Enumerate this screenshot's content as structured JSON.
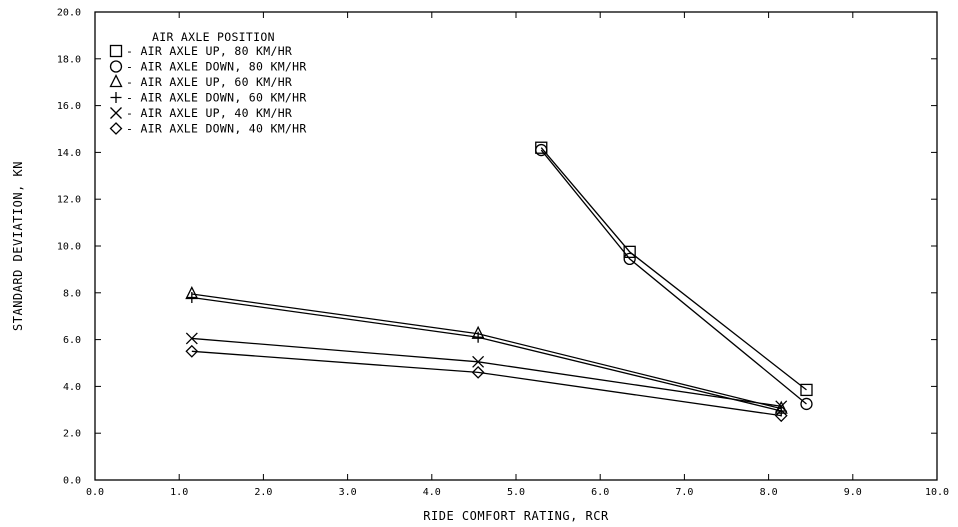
{
  "chart_data": {
    "type": "line",
    "title": "",
    "xlabel": "RIDE COMFORT RATING, RCR",
    "ylabel": "STANDARD DEVIATION, KN",
    "xlim": [
      0,
      10
    ],
    "ylim": [
      0,
      20
    ],
    "xticks": [
      "0.0",
      "1.0",
      "2.0",
      "3.0",
      "4.0",
      "5.0",
      "6.0",
      "7.0",
      "8.0",
      "9.0",
      "10.0"
    ],
    "yticks": [
      "0.0",
      "2.0",
      "4.0",
      "6.0",
      "8.0",
      "10.0",
      "12.0",
      "14.0",
      "16.0",
      "18.0",
      "20.0"
    ],
    "grid": false,
    "legend_title": "AIR AXLE POSITION",
    "legend_position": "top-left",
    "series": [
      {
        "name": "AIR AXLE UP, 80 KM/HR",
        "marker": "square",
        "x": [
          5.3,
          6.35,
          8.45
        ],
        "y": [
          14.2,
          9.75,
          3.85
        ]
      },
      {
        "name": "AIR AXLE DOWN, 80 KM/HR",
        "marker": "circle",
        "x": [
          5.3,
          6.35,
          8.45
        ],
        "y": [
          14.1,
          9.45,
          3.25
        ]
      },
      {
        "name": "AIR AXLE UP, 60 KM/HR",
        "marker": "triangle",
        "x": [
          1.15,
          4.55,
          8.15
        ],
        "y": [
          7.95,
          6.25,
          3.05
        ]
      },
      {
        "name": "AIR AXLE DOWN, 60 KM/HR",
        "marker": "plus",
        "x": [
          1.15,
          4.55,
          8.15
        ],
        "y": [
          7.8,
          6.1,
          2.95
        ]
      },
      {
        "name": "AIR AXLE UP, 40 KM/HR",
        "marker": "x",
        "x": [
          1.15,
          4.55,
          8.15
        ],
        "y": [
          6.05,
          5.05,
          3.15
        ]
      },
      {
        "name": "AIR AXLE DOWN, 40 KM/HR",
        "marker": "diamond",
        "x": [
          1.15,
          4.55,
          8.15
        ],
        "y": [
          5.5,
          4.6,
          2.75
        ]
      }
    ],
    "colors": {
      "line": "#000000",
      "background": "#ffffff"
    }
  }
}
